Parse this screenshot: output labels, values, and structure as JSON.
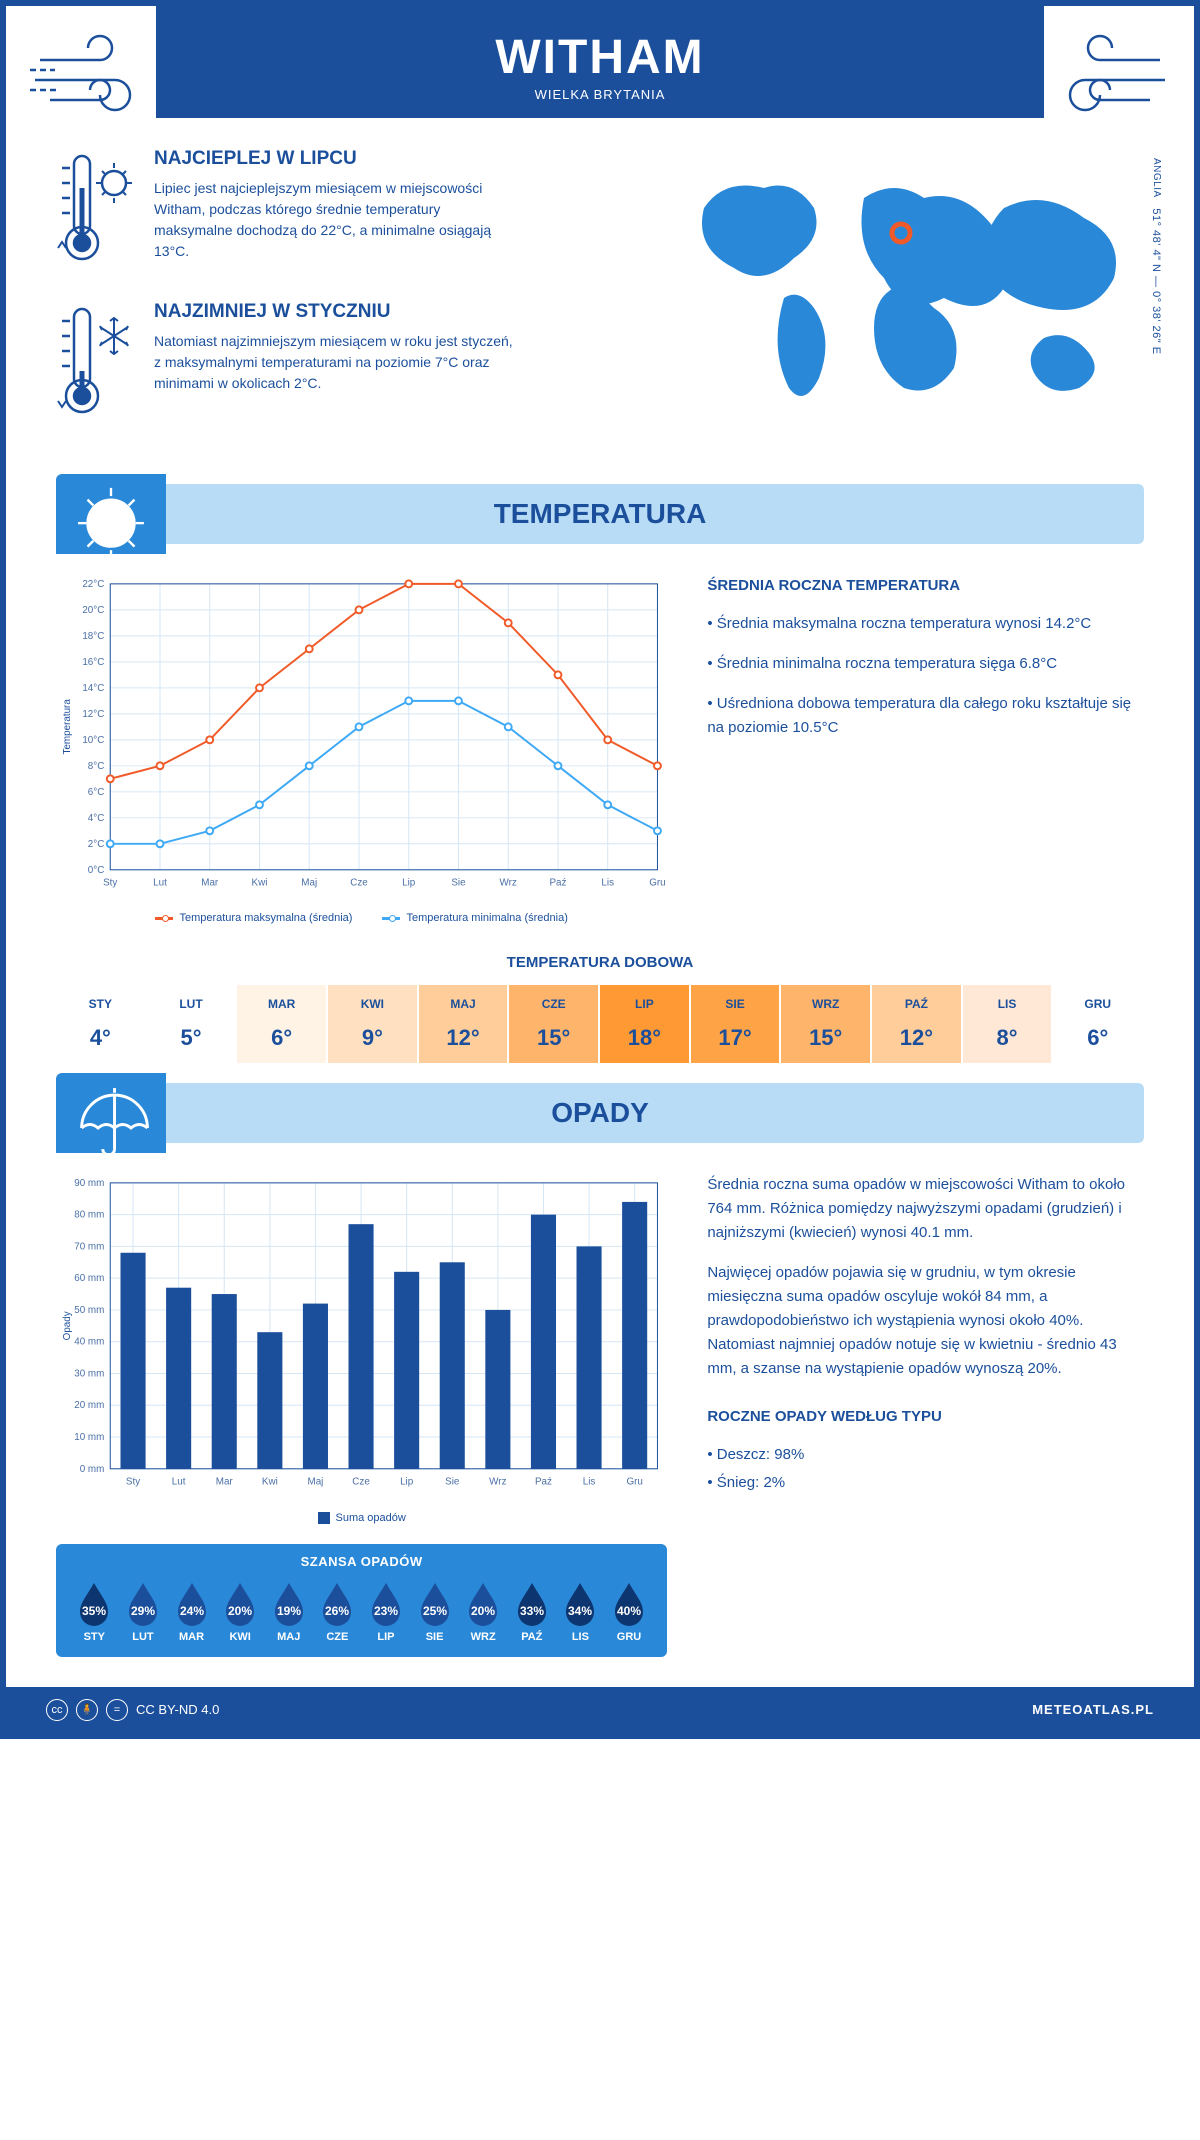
{
  "header": {
    "title": "WITHAM",
    "subtitle": "WIELKA BRYTANIA"
  },
  "coords": {
    "lat": "51° 48' 4\" N",
    "lon": "0° 38' 26\" E",
    "region": "ANGLIA"
  },
  "hot": {
    "title": "NAJCIEPLEJ W LIPCU",
    "text": "Lipiec jest najcieplejszym miesiącem w miejscowości Witham, podczas którego średnie temperatury maksymalne dochodzą do 22°C, a minimalne osiągają 13°C."
  },
  "cold": {
    "title": "NAJZIMNIEJ W STYCZNIU",
    "text": "Natomiast najzimniejszym miesiącem w roku jest styczeń, z maksymalnymi temperaturami na poziomie 7°C oraz minimami w okolicach 2°C."
  },
  "temp_section": {
    "title": "TEMPERATURA"
  },
  "temp_chart": {
    "type": "line",
    "months": [
      "Sty",
      "Lut",
      "Mar",
      "Kwi",
      "Maj",
      "Cze",
      "Lip",
      "Sie",
      "Wrz",
      "Paź",
      "Lis",
      "Gru"
    ],
    "max": [
      7,
      8,
      10,
      14,
      17,
      20,
      22,
      22,
      19,
      15,
      10,
      8
    ],
    "min": [
      2,
      2,
      3,
      5,
      8,
      11,
      13,
      13,
      11,
      8,
      5,
      3
    ],
    "ylim": [
      0,
      22
    ],
    "ytick_step": 2,
    "max_color": "#f05a28",
    "min_color": "#3fa9f5",
    "grid_color": "#d5e6f5",
    "axis_color": "#1b4f9c",
    "ylabel": "Temperatura",
    "legend_max": "Temperatura maksymalna (średnia)",
    "legend_min": "Temperatura minimalna (średnia)"
  },
  "temp_text": {
    "title": "ŚREDNIA ROCZNA TEMPERATURA",
    "p1": "• Średnia maksymalna roczna temperatura wynosi 14.2°C",
    "p2": "• Średnia minimalna roczna temperatura sięga 6.8°C",
    "p3": "• Uśredniona dobowa temperatura dla całego roku kształtuje się na poziomie 10.5°C"
  },
  "daily": {
    "title": "TEMPERATURA DOBOWA",
    "months": [
      "STY",
      "LUT",
      "MAR",
      "KWI",
      "MAJ",
      "CZE",
      "LIP",
      "SIE",
      "WRZ",
      "PAŹ",
      "LIS",
      "GRU"
    ],
    "values": [
      "4°",
      "5°",
      "6°",
      "9°",
      "12°",
      "15°",
      "18°",
      "17°",
      "15°",
      "12°",
      "8°",
      "6°"
    ],
    "colors": [
      "#ffffff",
      "#ffffff",
      "#fff3e6",
      "#ffe1c2",
      "#ffcd99",
      "#ffb46b",
      "#ff9933",
      "#ffa347",
      "#ffb46b",
      "#ffcd99",
      "#ffe9d6",
      "#ffffff"
    ]
  },
  "precip_section": {
    "title": "OPADY"
  },
  "precip_chart": {
    "type": "bar",
    "months": [
      "Sty",
      "Lut",
      "Mar",
      "Kwi",
      "Maj",
      "Cze",
      "Lip",
      "Sie",
      "Wrz",
      "Paź",
      "Lis",
      "Gru"
    ],
    "values": [
      68,
      57,
      55,
      43,
      52,
      77,
      62,
      65,
      50,
      80,
      70,
      84
    ],
    "ylim": [
      0,
      90
    ],
    "ytick_step": 10,
    "bar_color": "#1b4f9c",
    "grid_color": "#d5e6f5",
    "ylabel": "Opady",
    "legend": "Suma opadów"
  },
  "precip_text": {
    "p1": "Średnia roczna suma opadów w miejscowości Witham to około 764 mm. Różnica pomiędzy najwyższymi opadami (grudzień) i najniższymi (kwiecień) wynosi 40.1 mm.",
    "p2": "Najwięcej opadów pojawia się w grudniu, w tym okresie miesięczna suma opadów oscyluje wokół 84 mm, a prawdopodobieństwo ich wystąpienia wynosi około 40%. Natomiast najmniej opadów notuje się w kwietniu - średnio 43 mm, a szanse na wystąpienie opadów wynoszą 20%.",
    "type_title": "ROCZNE OPADY WEDŁUG TYPU",
    "type1": "• Deszcz: 98%",
    "type2": "• Śnieg: 2%"
  },
  "chance": {
    "title": "SZANSA OPADÓW",
    "months": [
      "STY",
      "LUT",
      "MAR",
      "KWI",
      "MAJ",
      "CZE",
      "LIP",
      "SIE",
      "WRZ",
      "PAŹ",
      "LIS",
      "GRU"
    ],
    "values": [
      "35%",
      "29%",
      "24%",
      "20%",
      "19%",
      "26%",
      "23%",
      "25%",
      "20%",
      "33%",
      "34%",
      "40%"
    ],
    "drop_color": "#1b4f9c",
    "drop_dark": "#0d3570"
  },
  "footer": {
    "license": "CC BY-ND 4.0",
    "site": "METEOATLAS.PL"
  }
}
